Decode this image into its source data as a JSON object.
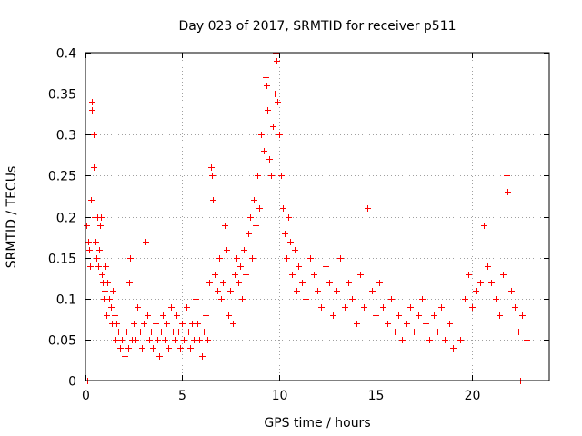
{
  "chart_data": {
    "type": "scatter",
    "title": "Day 023 of 2017, SRMTID for receiver p511",
    "xlabel": "GPS time / hours",
    "ylabel": "SRMTID / TECUs",
    "xlim": [
      0,
      24
    ],
    "ylim": [
      0,
      0.4
    ],
    "xticks": [
      0,
      5,
      10,
      15,
      20
    ],
    "xtick_labels": [
      "0",
      "5",
      "10",
      "15",
      "20"
    ],
    "yticks": [
      0,
      0.05,
      0.1,
      0.15,
      0.2,
      0.25,
      0.3,
      0.35,
      0.4
    ],
    "ytick_labels": [
      "0",
      "0.05",
      "0.1",
      "0.15",
      "0.2",
      "0.25",
      "0.3",
      "0.35",
      "0.4"
    ],
    "grid": true,
    "marker": "plus",
    "series": [
      {
        "name": "SRMTID",
        "color": "#ff0000",
        "points": [
          [
            0.05,
            0.19
          ],
          [
            0.15,
            0.17
          ],
          [
            0.2,
            0.16
          ],
          [
            0.25,
            0.14
          ],
          [
            0.3,
            0.22
          ],
          [
            0.35,
            0.34
          ],
          [
            0.35,
            0.33
          ],
          [
            0.4,
            0.3
          ],
          [
            0.4,
            0.26
          ],
          [
            0.45,
            0.2
          ],
          [
            0.5,
            0.17
          ],
          [
            0.55,
            0.15
          ],
          [
            0.6,
            0.2
          ],
          [
            0.65,
            0.14
          ],
          [
            0.7,
            0.16
          ],
          [
            0.75,
            0.19
          ],
          [
            0.8,
            0.2
          ],
          [
            0.85,
            0.13
          ],
          [
            0.9,
            0.12
          ],
          [
            0.95,
            0.1
          ],
          [
            1.0,
            0.11
          ],
          [
            1.05,
            0.14
          ],
          [
            1.1,
            0.08
          ],
          [
            1.15,
            0.12
          ],
          [
            1.2,
            0.1
          ],
          [
            1.3,
            0.09
          ],
          [
            1.35,
            0.07
          ],
          [
            1.4,
            0.11
          ],
          [
            1.5,
            0.08
          ],
          [
            1.55,
            0.05
          ],
          [
            1.6,
            0.07
          ],
          [
            1.7,
            0.06
          ],
          [
            1.8,
            0.04
          ],
          [
            1.9,
            0.05
          ],
          [
            2.0,
            0.03
          ],
          [
            2.1,
            0.06
          ],
          [
            2.2,
            0.04
          ],
          [
            2.25,
            0.12
          ],
          [
            2.3,
            0.15
          ],
          [
            2.4,
            0.05
          ],
          [
            2.5,
            0.07
          ],
          [
            2.6,
            0.05
          ],
          [
            2.7,
            0.09
          ],
          [
            2.8,
            0.06
          ],
          [
            2.9,
            0.04
          ],
          [
            3.0,
            0.07
          ],
          [
            3.1,
            0.17
          ],
          [
            3.2,
            0.08
          ],
          [
            3.3,
            0.05
          ],
          [
            3.4,
            0.06
          ],
          [
            3.5,
            0.04
          ],
          [
            3.6,
            0.07
          ],
          [
            3.7,
            0.05
          ],
          [
            3.8,
            0.03
          ],
          [
            3.9,
            0.06
          ],
          [
            4.0,
            0.08
          ],
          [
            4.1,
            0.05
          ],
          [
            4.2,
            0.07
          ],
          [
            4.3,
            0.04
          ],
          [
            4.4,
            0.09
          ],
          [
            4.5,
            0.06
          ],
          [
            4.6,
            0.05
          ],
          [
            4.7,
            0.08
          ],
          [
            4.8,
            0.06
          ],
          [
            4.9,
            0.04
          ],
          [
            5.0,
            0.07
          ],
          [
            5.1,
            0.05
          ],
          [
            5.2,
            0.09
          ],
          [
            5.3,
            0.06
          ],
          [
            5.4,
            0.04
          ],
          [
            5.5,
            0.07
          ],
          [
            5.6,
            0.05
          ],
          [
            5.7,
            0.1
          ],
          [
            5.8,
            0.07
          ],
          [
            5.9,
            0.05
          ],
          [
            6.0,
            0.03
          ],
          [
            6.1,
            0.06
          ],
          [
            6.2,
            0.08
          ],
          [
            6.3,
            0.05
          ],
          [
            6.4,
            0.12
          ],
          [
            6.5,
            0.26
          ],
          [
            6.55,
            0.25
          ],
          [
            6.6,
            0.22
          ],
          [
            6.7,
            0.13
          ],
          [
            6.8,
            0.11
          ],
          [
            6.9,
            0.15
          ],
          [
            7.0,
            0.1
          ],
          [
            7.1,
            0.12
          ],
          [
            7.2,
            0.19
          ],
          [
            7.3,
            0.16
          ],
          [
            7.4,
            0.08
          ],
          [
            7.5,
            0.11
          ],
          [
            7.6,
            0.07
          ],
          [
            7.7,
            0.13
          ],
          [
            7.8,
            0.15
          ],
          [
            7.9,
            0.12
          ],
          [
            8.0,
            0.14
          ],
          [
            8.1,
            0.1
          ],
          [
            8.2,
            0.16
          ],
          [
            8.3,
            0.13
          ],
          [
            8.4,
            0.18
          ],
          [
            8.5,
            0.2
          ],
          [
            8.6,
            0.15
          ],
          [
            8.7,
            0.22
          ],
          [
            8.8,
            0.19
          ],
          [
            8.9,
            0.25
          ],
          [
            9.0,
            0.21
          ],
          [
            9.1,
            0.3
          ],
          [
            9.2,
            0.28
          ],
          [
            9.3,
            0.37
          ],
          [
            9.35,
            0.36
          ],
          [
            9.4,
            0.33
          ],
          [
            9.5,
            0.27
          ],
          [
            9.6,
            0.25
          ],
          [
            9.7,
            0.31
          ],
          [
            9.8,
            0.35
          ],
          [
            9.85,
            0.4
          ],
          [
            9.9,
            0.39
          ],
          [
            9.95,
            0.34
          ],
          [
            10.0,
            0.3
          ],
          [
            10.1,
            0.25
          ],
          [
            10.2,
            0.21
          ],
          [
            10.3,
            0.18
          ],
          [
            10.4,
            0.15
          ],
          [
            10.5,
            0.2
          ],
          [
            10.6,
            0.17
          ],
          [
            10.7,
            0.13
          ],
          [
            10.8,
            0.16
          ],
          [
            10.9,
            0.11
          ],
          [
            11.0,
            0.14
          ],
          [
            11.2,
            0.12
          ],
          [
            11.4,
            0.1
          ],
          [
            11.6,
            0.15
          ],
          [
            11.8,
            0.13
          ],
          [
            12.0,
            0.11
          ],
          [
            12.2,
            0.09
          ],
          [
            12.4,
            0.14
          ],
          [
            12.6,
            0.12
          ],
          [
            12.8,
            0.08
          ],
          [
            13.0,
            0.11
          ],
          [
            13.2,
            0.15
          ],
          [
            13.4,
            0.09
          ],
          [
            13.6,
            0.12
          ],
          [
            13.8,
            0.1
          ],
          [
            14.0,
            0.07
          ],
          [
            14.2,
            0.13
          ],
          [
            14.4,
            0.09
          ],
          [
            14.6,
            0.21
          ],
          [
            14.8,
            0.11
          ],
          [
            15.0,
            0.08
          ],
          [
            15.2,
            0.12
          ],
          [
            15.4,
            0.09
          ],
          [
            15.6,
            0.07
          ],
          [
            15.8,
            0.1
          ],
          [
            16.0,
            0.06
          ],
          [
            16.2,
            0.08
          ],
          [
            16.4,
            0.05
          ],
          [
            16.6,
            0.07
          ],
          [
            16.8,
            0.09
          ],
          [
            17.0,
            0.06
          ],
          [
            17.2,
            0.08
          ],
          [
            17.4,
            0.1
          ],
          [
            17.6,
            0.07
          ],
          [
            17.8,
            0.05
          ],
          [
            18.0,
            0.08
          ],
          [
            18.2,
            0.06
          ],
          [
            18.4,
            0.09
          ],
          [
            18.6,
            0.05
          ],
          [
            18.8,
            0.07
          ],
          [
            19.0,
            0.04
          ],
          [
            19.2,
            0.06
          ],
          [
            19.4,
            0.05
          ],
          [
            19.6,
            0.1
          ],
          [
            19.8,
            0.13
          ],
          [
            20.0,
            0.09
          ],
          [
            20.2,
            0.11
          ],
          [
            20.4,
            0.12
          ],
          [
            20.6,
            0.19
          ],
          [
            20.8,
            0.14
          ],
          [
            21.0,
            0.12
          ],
          [
            21.2,
            0.1
          ],
          [
            21.4,
            0.08
          ],
          [
            21.6,
            0.13
          ],
          [
            21.8,
            0.25
          ],
          [
            21.85,
            0.23
          ],
          [
            22.0,
            0.11
          ],
          [
            22.2,
            0.09
          ],
          [
            22.4,
            0.06
          ],
          [
            22.6,
            0.08
          ],
          [
            22.8,
            0.05
          ],
          [
            0.1,
            0.0
          ],
          [
            19.2,
            0.0
          ],
          [
            22.5,
            0.0
          ]
        ]
      }
    ]
  }
}
